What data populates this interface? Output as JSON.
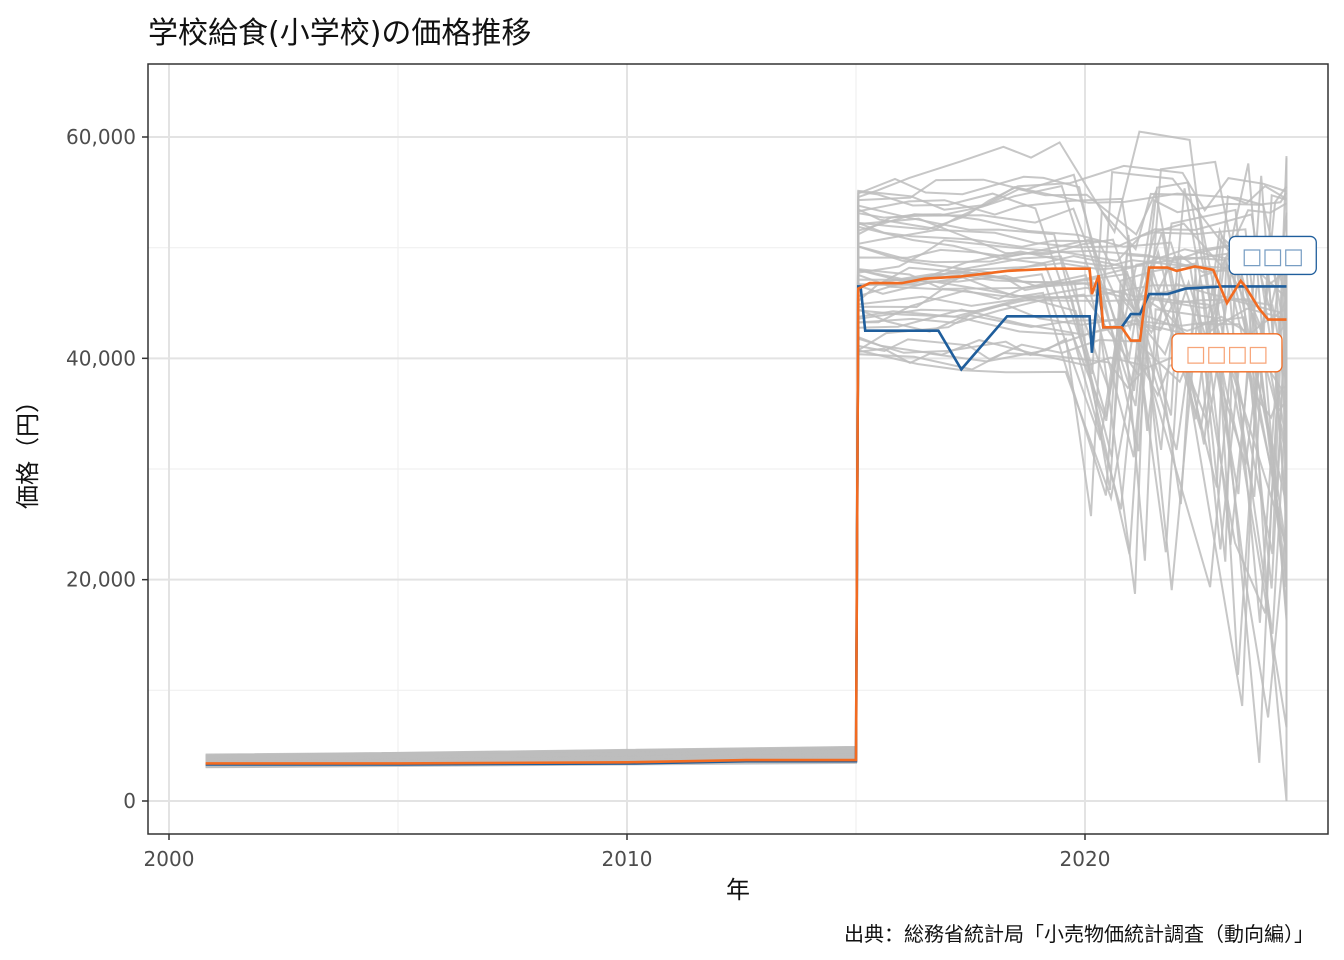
{
  "chart_data": {
    "type": "line",
    "title": "学校給食(小学校)の価格推移",
    "xlabel": "年",
    "ylabel": "価格（円）",
    "caption": "出典：総務省統計局「小売物価統計調査（動向編）」",
    "xlim": [
      2000,
      2025
    ],
    "ylim": [
      0,
      65000
    ],
    "xticks": [
      2000,
      2010,
      2020
    ],
    "xtick_labels": [
      "2000",
      "2010",
      "2020"
    ],
    "yticks": [
      0,
      20000,
      40000,
      60000
    ],
    "ytick_labels": [
      "0",
      "20,000",
      "40,000",
      "60,000"
    ],
    "grid": true,
    "colors": {
      "highlight_blue": "#1f5e9c",
      "highlight_orange": "#f26b21",
      "background_series": "#bdbdbd",
      "panel_border": "#333333"
    },
    "series": [
      {
        "name": "□□□",
        "color": "#1f5e9c",
        "x": [
          2000.8,
          2005,
          2010.2,
          2012.6,
          2015.0,
          2015.05,
          2015.1,
          2015.2,
          2015.3,
          2016.8,
          2017.3,
          2018.3,
          2019.0,
          2020.1,
          2020.15,
          2020.3,
          2020.4,
          2020.8,
          2021.0,
          2021.2,
          2021.4,
          2021.8,
          2022.2,
          2023.0,
          2024.0,
          2024.4
        ],
        "y": [
          3300,
          3300,
          3400,
          3600,
          3600,
          46500,
          46500,
          42500,
          42500,
          42500,
          39000,
          43800,
          43800,
          43800,
          40500,
          47000,
          42800,
          42800,
          44000,
          44000,
          45800,
          45800,
          46300,
          46500,
          46500,
          46500
        ]
      },
      {
        "name": "□□□□",
        "color": "#f26b21",
        "x": [
          2000.8,
          2005,
          2010,
          2012.6,
          2015.0,
          2015.05,
          2015.3,
          2016.0,
          2016.5,
          2017.3,
          2018.3,
          2019.3,
          2020.1,
          2020.15,
          2020.3,
          2020.4,
          2020.8,
          2021.0,
          2021.2,
          2021.4,
          2021.8,
          2022.0,
          2022.4,
          2022.8,
          2023.1,
          2023.4,
          2023.5,
          2023.8,
          2024.0,
          2024.4
        ],
        "y": [
          3400,
          3400,
          3500,
          3700,
          3700,
          46300,
          46800,
          46800,
          47200,
          47400,
          47900,
          48100,
          48100,
          45800,
          47500,
          42800,
          42800,
          41600,
          41600,
          48200,
          48200,
          47900,
          48300,
          48000,
          45000,
          47000,
          46500,
          44500,
          43500,
          43500
        ]
      }
    ],
    "background_series_count": 47,
    "labels": [
      {
        "text": "□□□",
        "series": "□□□",
        "x": 2024.1,
        "y": 49300
      },
      {
        "text": "□□□□",
        "series": "□□□□",
        "x": 2023.1,
        "y": 40500
      }
    ]
  }
}
